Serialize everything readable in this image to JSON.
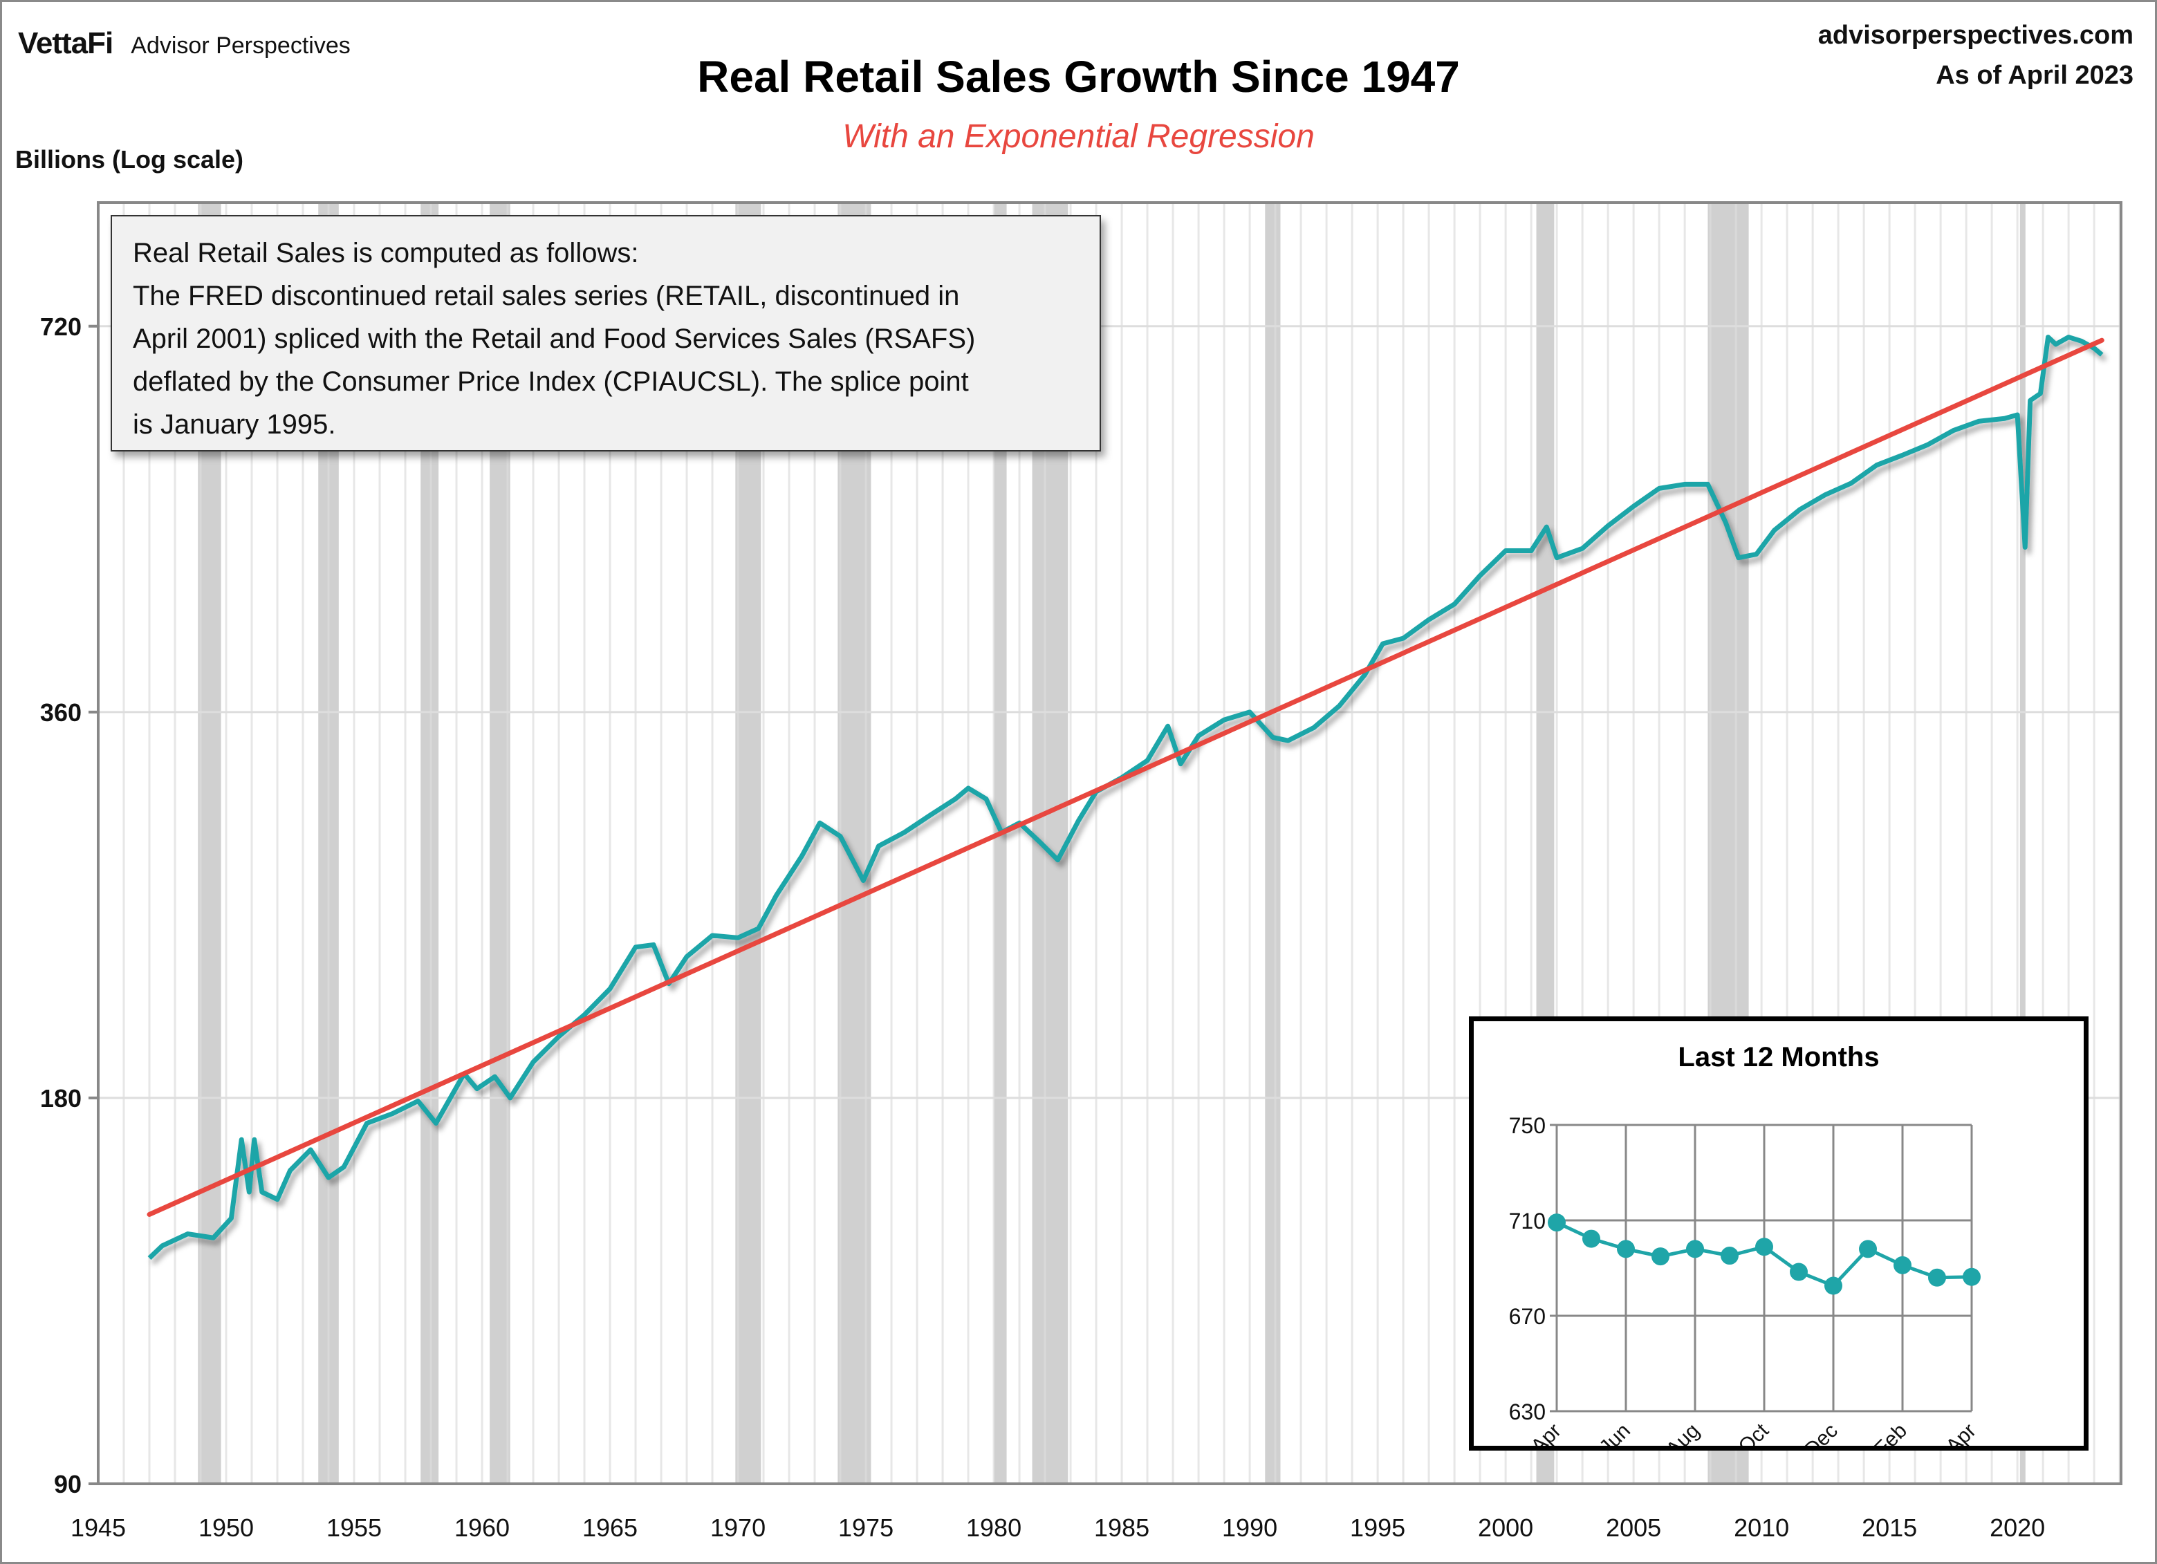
{
  "header": {
    "logo_mark": "VettaFi",
    "logo_text": "Advisor Perspectives",
    "site": "advisorperspectives.com",
    "as_of": "As of April 2023"
  },
  "note": {
    "lines": [
      "Real Retail Sales is computed as follows:",
      "The FRED discontinued retail sales series (RETAIL, discontinued in",
      "April 2001) spliced with the Retail and Food Services Sales (RSAFS)",
      "deflated by the Consumer Price Index (CPIAUCSL). The splice point",
      "is January 1995."
    ]
  },
  "colors": {
    "series": "#1fa5a8",
    "regression": "#e8473f",
    "recession": "#d0d0d0",
    "grid": "#dddddd"
  },
  "chart_data": [
    {
      "type": "line",
      "title": "Real Retail Sales Growth Since 1947",
      "subtitle": "With an Exponential Regression",
      "ylabel": "Billions (Log scale)",
      "xlabel": "",
      "yscale": "log2",
      "ylim": [
        90,
        899
      ],
      "xlim": [
        1945,
        2024.05
      ],
      "yticks": [
        90,
        180,
        360,
        720
      ],
      "ytick_labels": [
        "90",
        "180",
        "360",
        "720"
      ],
      "xticks": [
        1945,
        1950,
        1955,
        1960,
        1965,
        1970,
        1975,
        1980,
        1985,
        1990,
        1995,
        2000,
        2005,
        2010,
        2015,
        2020
      ],
      "xtick_labels": [
        "1945",
        "1950",
        "1955",
        "1960",
        "1965",
        "1970",
        "1975",
        "1980",
        "1985",
        "1990",
        "1995",
        "2000",
        "2005",
        "2010",
        "2015",
        "2020"
      ],
      "grid": true,
      "recessions": [
        [
          1948.9,
          1949.8
        ],
        [
          1953.6,
          1954.4
        ],
        [
          1957.6,
          1958.3
        ],
        [
          1960.3,
          1961.1
        ],
        [
          1969.9,
          1970.9
        ],
        [
          1973.9,
          1975.2
        ],
        [
          1980.0,
          1980.5
        ],
        [
          1981.5,
          1982.9
        ],
        [
          1990.6,
          1991.2
        ],
        [
          2001.2,
          2001.9
        ],
        [
          2007.9,
          2009.5
        ],
        [
          2020.1,
          2020.3
        ]
      ],
      "series": [
        {
          "name": "Real Retail Sales",
          "x": [
            1947.0,
            1947.5,
            1948.5,
            1949.5,
            1950.2,
            1950.6,
            1950.9,
            1951.1,
            1951.4,
            1952.0,
            1952.5,
            1953.3,
            1954.0,
            1954.6,
            1955.5,
            1956.5,
            1957.5,
            1958.2,
            1959.3,
            1959.8,
            1960.5,
            1961.1,
            1962.0,
            1963.0,
            1964.0,
            1965.0,
            1966.0,
            1966.7,
            1967.3,
            1968.0,
            1969.0,
            1970.0,
            1970.8,
            1971.5,
            1972.5,
            1973.2,
            1974.0,
            1974.9,
            1975.5,
            1976.5,
            1977.5,
            1978.5,
            1979.0,
            1979.7,
            1980.3,
            1981.0,
            1981.8,
            1982.5,
            1983.3,
            1984.0,
            1985.0,
            1986.0,
            1986.8,
            1987.3,
            1988.0,
            1989.0,
            1990.0,
            1990.9,
            1991.5,
            1992.5,
            1993.5,
            1994.5,
            1995.2,
            1996.0,
            1997.0,
            1998.0,
            1999.0,
            2000.0,
            2001.0,
            2001.6,
            2002.0,
            2003.0,
            2004.0,
            2005.0,
            2006.0,
            2007.0,
            2007.9,
            2008.6,
            2009.1,
            2009.8,
            2010.5,
            2011.5,
            2012.5,
            2013.5,
            2014.5,
            2015.5,
            2016.5,
            2017.5,
            2018.5,
            2019.5,
            2020.0,
            2020.3,
            2020.5,
            2020.9,
            2021.2,
            2021.5,
            2022.0,
            2022.5,
            2023.0,
            2023.3
          ],
          "values": [
            135,
            138,
            141,
            140,
            145,
            167,
            152,
            167,
            152,
            150,
            158,
            164,
            156,
            159,
            172,
            175,
            179,
            172,
            188,
            183,
            187,
            180,
            192,
            201,
            209,
            219,
            236,
            237,
            221,
            232,
            241,
            240,
            244,
            259,
            278,
            295,
            288,
            266,
            283,
            290,
            299,
            308,
            314,
            308,
            290,
            295,
            285,
            276,
            296,
            312,
            320,
            330,
            351,
            328,
            345,
            355,
            360,
            344,
            342,
            350,
            364,
            385,
            407,
            411,
            425,
            437,
            460,
            481,
            481,
            502,
            475,
            483,
            503,
            521,
            538,
            542,
            542,
            506,
            475,
            478,
            499,
            518,
            532,
            543,
            561,
            571,
            582,
            597,
            607,
            610,
            614,
            484,
            630,
            638,
            706,
            697,
            706,
            701,
            692,
            684
          ]
        },
        {
          "name": "Exponential Regression",
          "x": [
            1947.0,
            2023.3
          ],
          "values": [
            146,
            702
          ]
        }
      ]
    },
    {
      "type": "line",
      "title": "Last 12 Months",
      "categories": [
        "Apr",
        "May",
        "Jun",
        "Jul",
        "Aug",
        "Sep",
        "Oct",
        "Nov",
        "Dec",
        "Jan",
        "Feb",
        "Mar",
        "Apr"
      ],
      "xtick_labels": [
        "Apr",
        "Jun",
        "Aug",
        "Oct",
        "Dec",
        "Feb",
        "Apr"
      ],
      "ylim": [
        630,
        750
      ],
      "yticks": [
        630,
        670,
        710,
        750
      ],
      "ytick_labels": [
        "630",
        "670",
        "710",
        "750"
      ],
      "grid": true,
      "series": [
        {
          "name": "Real Retail Sales",
          "values": [
            709.1,
            702.3,
            698.0,
            694.9,
            698.0,
            695.2,
            698.9,
            688.4,
            682.6,
            698.0,
            691.2,
            686.0,
            686.3
          ]
        }
      ]
    }
  ]
}
